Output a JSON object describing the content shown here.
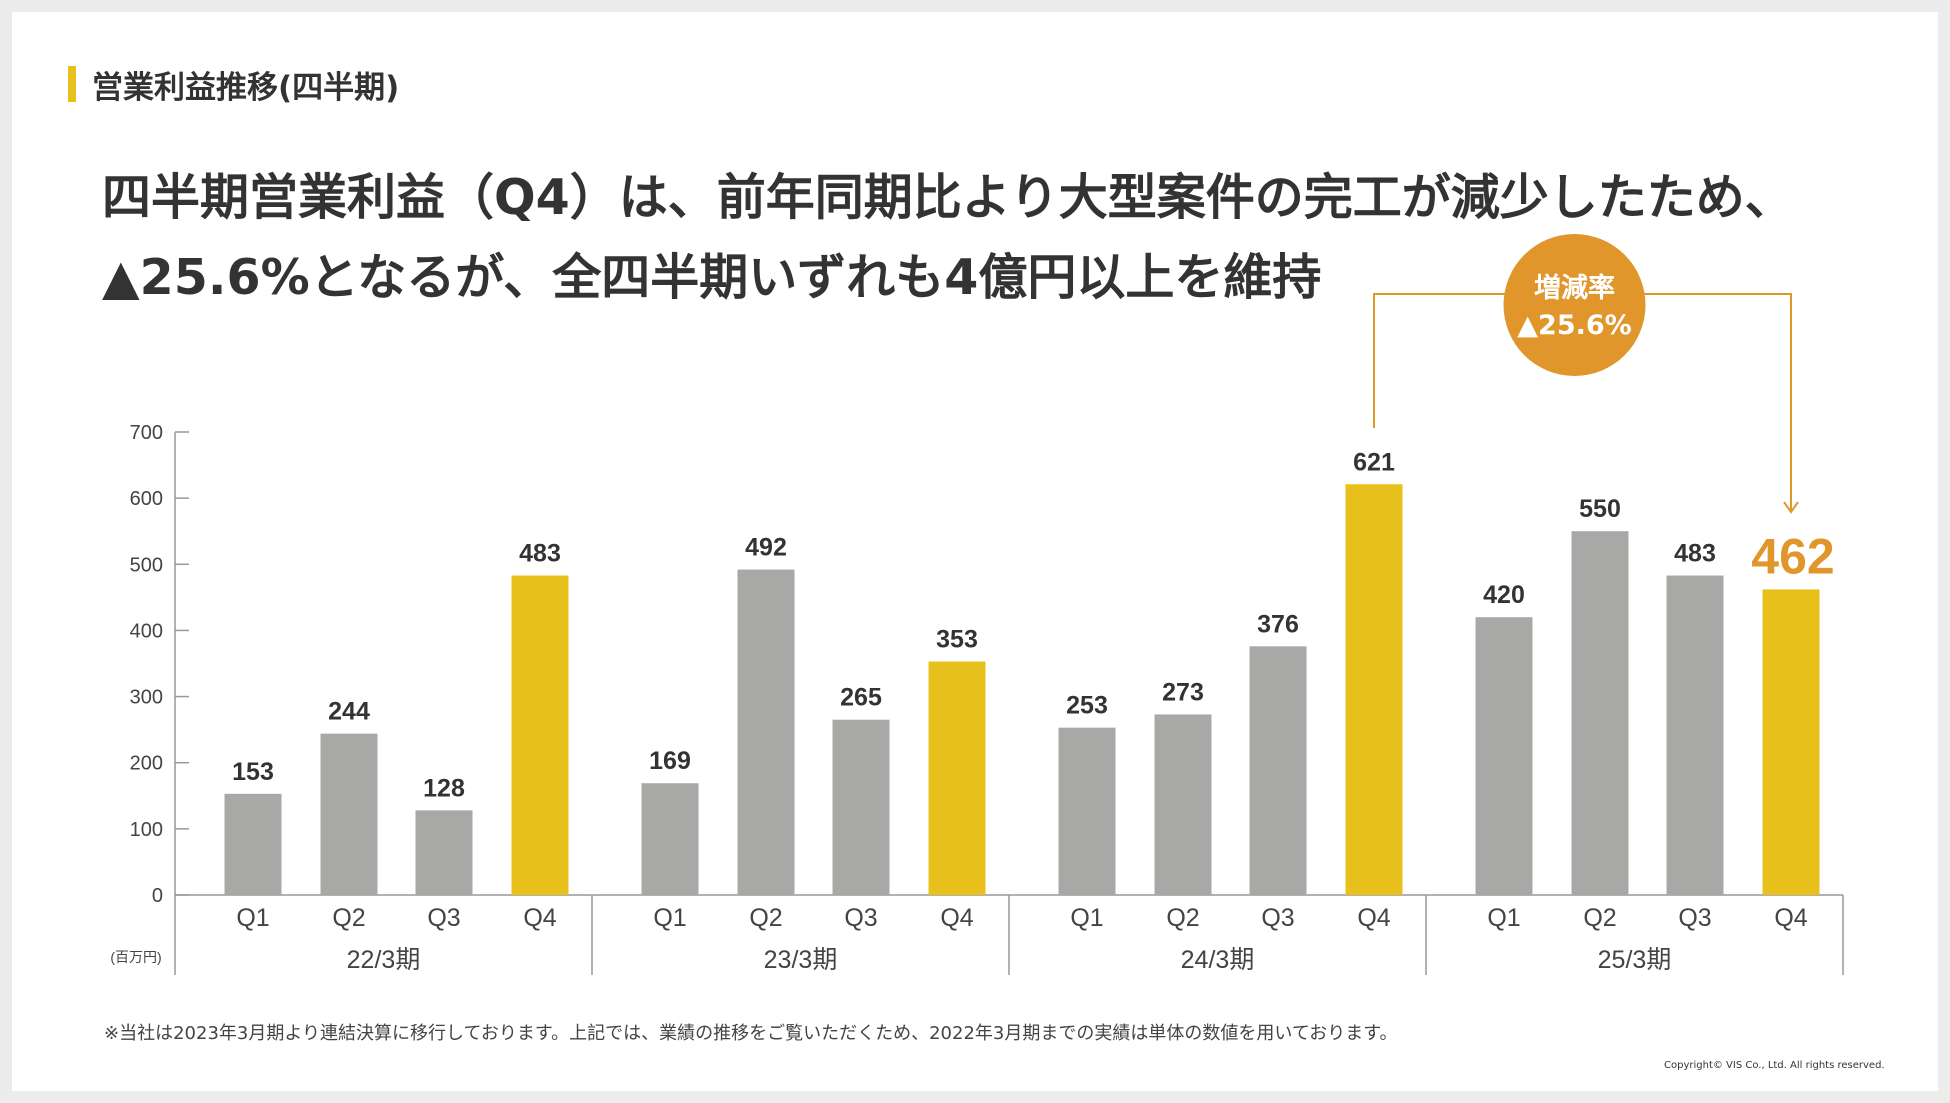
{
  "section": {
    "title": "営業利益推移(四半期)"
  },
  "headline": {
    "line1": "四半期営業利益（Q4）は、前年同期比より大型案件の完工が減少したため、",
    "line2": "▲25.6%となるが、全四半期いずれも4億円以上を維持"
  },
  "callout": {
    "label": "増減率",
    "value": "▲25.6%"
  },
  "footnote": "※当社は2023年3月期より連結決算に移行しております。上記では、業績の推移をご覧いただくため、2022年3月期までの実績は単体の数値を用いております。",
  "copyright": "Copyright© VIS Co., Ltd. All rights reserved.",
  "colors": {
    "gray": "#a8a8a7",
    "yellow": "#e8c01c",
    "orange": "#e0962a",
    "axis": "#999999"
  },
  "chart_data": {
    "type": "bar",
    "title": "営業利益推移(四半期)",
    "unit_label": "(百万円)",
    "ylim": [
      0,
      700
    ],
    "yticks": [
      0,
      100,
      200,
      300,
      400,
      500,
      600,
      700
    ],
    "quarters": [
      "Q1",
      "Q2",
      "Q3",
      "Q4"
    ],
    "groups": [
      {
        "period": "22/3期",
        "values": [
          153,
          244,
          128,
          483
        ]
      },
      {
        "period": "23/3期",
        "values": [
          169,
          492,
          265,
          353
        ]
      },
      {
        "period": "24/3期",
        "values": [
          253,
          273,
          376,
          621
        ]
      },
      {
        "period": "25/3期",
        "values": [
          420,
          550,
          483,
          462
        ]
      }
    ],
    "highlight_quarter": "Q4",
    "emphasized": {
      "period": "25/3期",
      "quarter": "Q4",
      "value": 462
    }
  }
}
